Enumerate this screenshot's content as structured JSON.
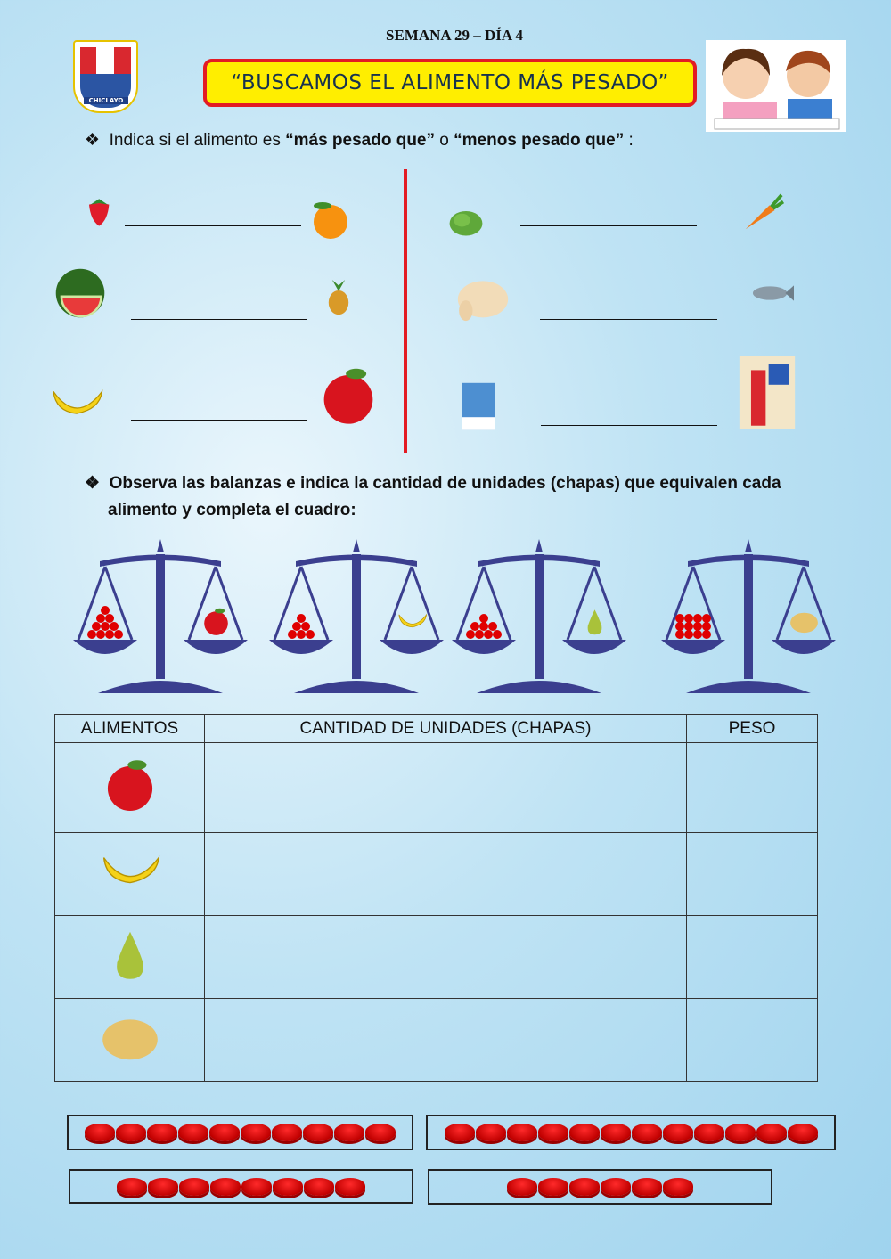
{
  "header": {
    "week": "SEMANA 29 – DÍA 4",
    "title": "“BUSCAMOS EL ALIMENTO MÁS PESADO”",
    "logo_text": "CHICLAYO"
  },
  "section1": {
    "bullet": "❖",
    "text_a": "Indica si el alimento es ",
    "bold_1": "“más pesado que”",
    "text_b": " o ",
    "bold_2": "“menos pesado que”",
    "text_c": " :",
    "pairs": [
      [
        "strawberry",
        "orange"
      ],
      [
        "watermelon",
        "pineapple"
      ],
      [
        "banana",
        "apple"
      ],
      [
        "lettuce",
        "carrot"
      ],
      [
        "chicken",
        "fish"
      ],
      [
        "salt",
        "rice"
      ]
    ]
  },
  "section2": {
    "bullet": "❖",
    "line1": "Observa las balanzas e indica la cantidad de unidades (chapas) que equivalen cada",
    "line2": "alimento y completa el cuadro:"
  },
  "balances": [
    {
      "chips": 10,
      "food": "apple"
    },
    {
      "chips": 6,
      "food": "banana"
    },
    {
      "chips": 8,
      "food": "pear"
    },
    {
      "chips": 12,
      "food": "potato"
    }
  ],
  "table": {
    "headers": [
      "ALIMENTOS",
      "CANTIDAD DE UNIDADES (CHAPAS)",
      "PESO"
    ],
    "rows": [
      {
        "food": "apple"
      },
      {
        "food": "banana"
      },
      {
        "food": "pear"
      },
      {
        "food": "potato"
      }
    ]
  },
  "chip_groups": [
    10,
    12,
    8,
    6
  ],
  "colors": {
    "title_bg": "#ffee00",
    "title_border": "#e31b23",
    "balance": "#3b3f8f",
    "chip": "#e00000"
  }
}
